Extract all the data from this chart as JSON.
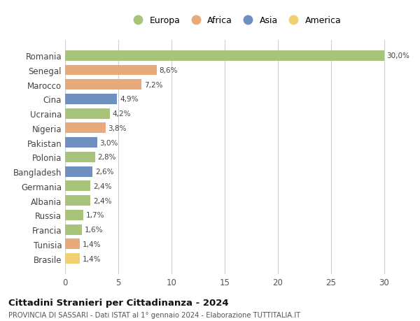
{
  "countries": [
    "Romania",
    "Senegal",
    "Marocco",
    "Cina",
    "Ucraina",
    "Nigeria",
    "Pakistan",
    "Polonia",
    "Bangladesh",
    "Germania",
    "Albania",
    "Russia",
    "Francia",
    "Tunisia",
    "Brasile"
  ],
  "values": [
    30.0,
    8.6,
    7.2,
    4.9,
    4.2,
    3.8,
    3.0,
    2.8,
    2.6,
    2.4,
    2.4,
    1.7,
    1.6,
    1.4,
    1.4
  ],
  "labels": [
    "30,0%",
    "8,6%",
    "7,2%",
    "4,9%",
    "4,2%",
    "3,8%",
    "3,0%",
    "2,8%",
    "2,6%",
    "2,4%",
    "2,4%",
    "1,7%",
    "1,6%",
    "1,4%",
    "1,4%"
  ],
  "continents": [
    "Europa",
    "Africa",
    "Africa",
    "Asia",
    "Europa",
    "Africa",
    "Asia",
    "Europa",
    "Asia",
    "Europa",
    "Europa",
    "Europa",
    "Europa",
    "Africa",
    "America"
  ],
  "colors": {
    "Europa": "#a8c47a",
    "Africa": "#e8aa7a",
    "Asia": "#6e8fc0",
    "America": "#f0d070"
  },
  "legend_order": [
    "Europa",
    "Africa",
    "Asia",
    "America"
  ],
  "title": "Cittadini Stranieri per Cittadinanza - 2024",
  "subtitle": "PROVINCIA DI SASSARI - Dati ISTAT al 1° gennaio 2024 - Elaborazione TUTTITALIA.IT",
  "xlim": [
    0,
    32
  ],
  "xticks": [
    0,
    5,
    10,
    15,
    20,
    25,
    30
  ],
  "background_color": "#ffffff",
  "grid_color": "#d0d0d0",
  "bar_height": 0.72
}
